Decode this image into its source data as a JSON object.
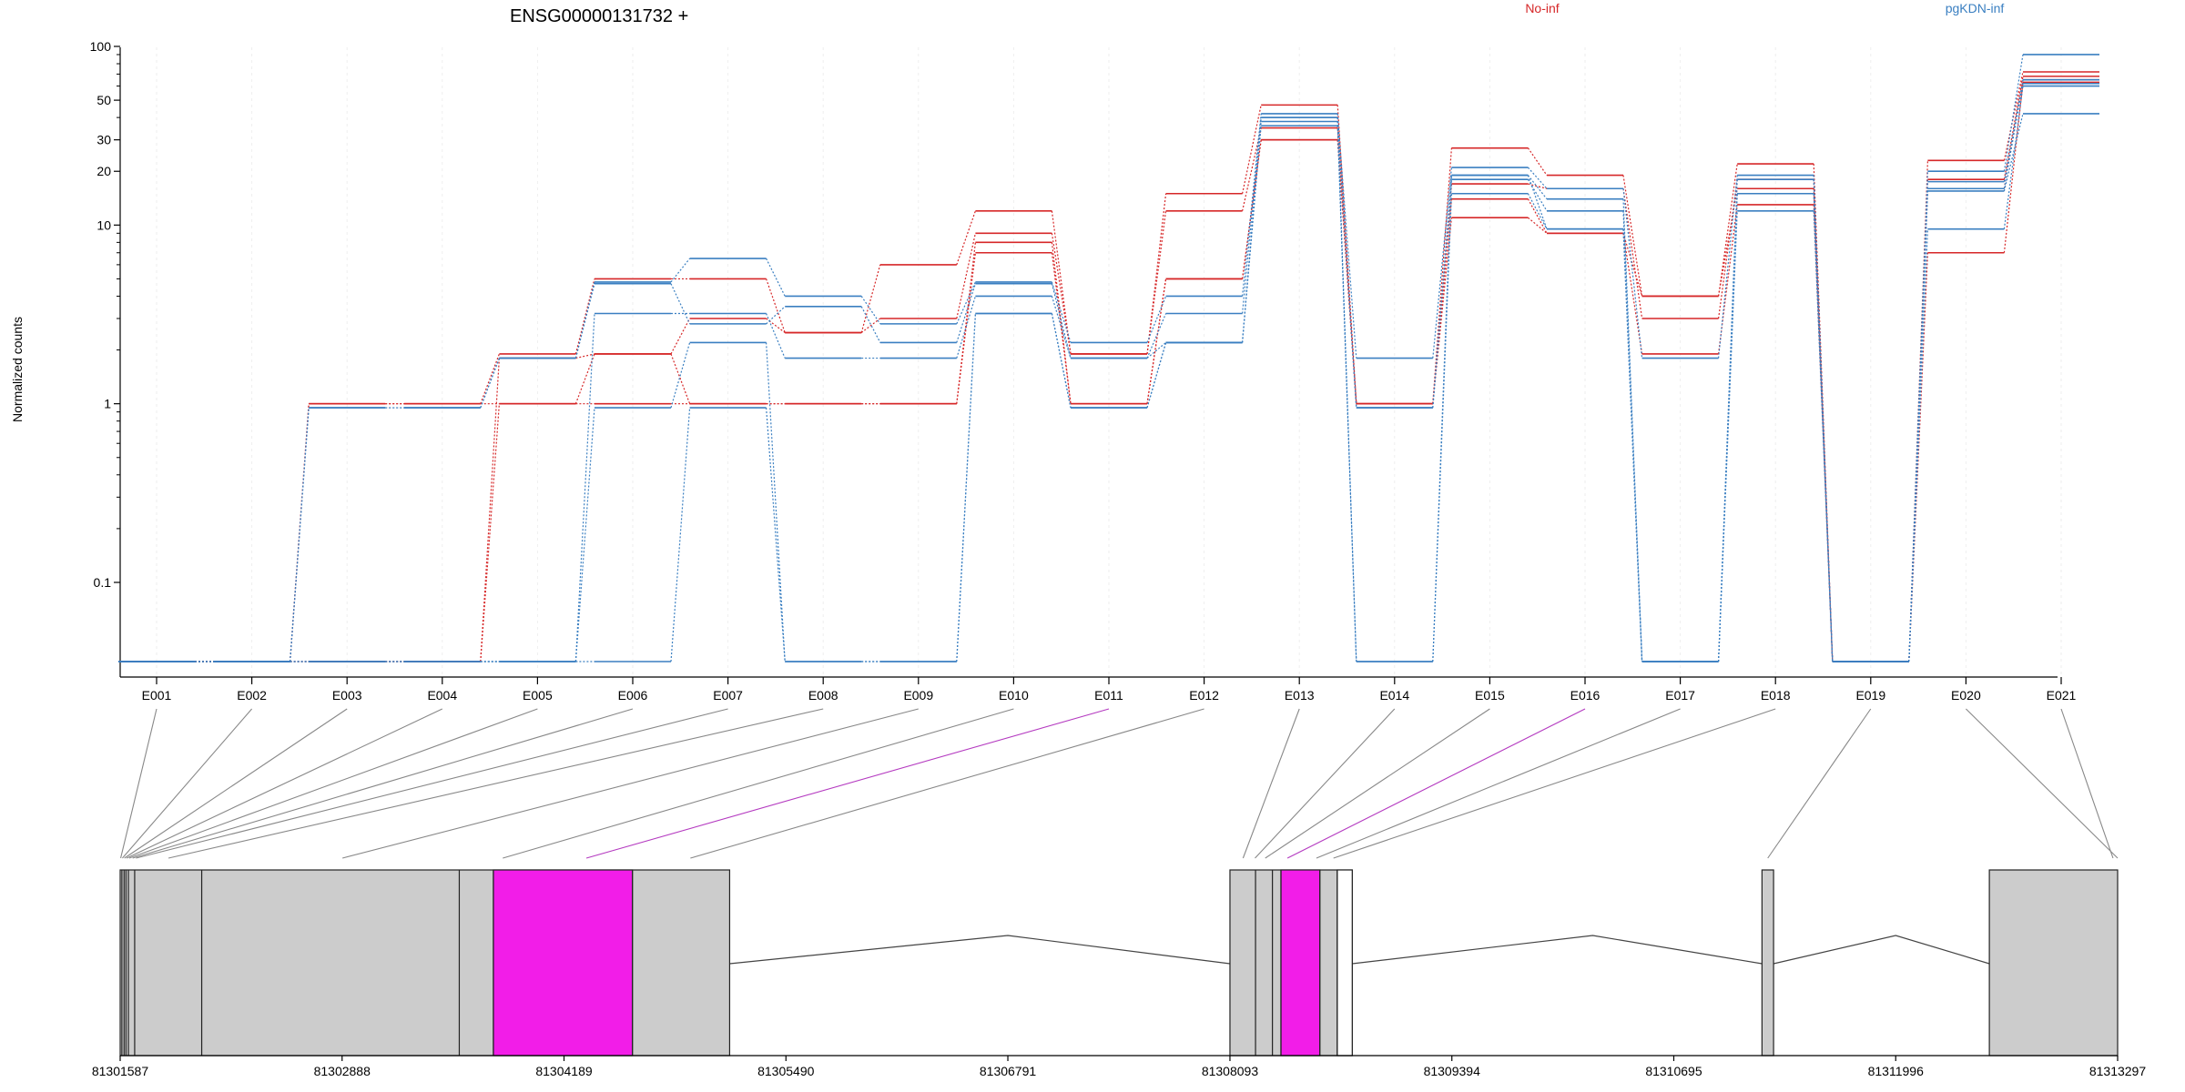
{
  "chart_data": {
    "type": "line",
    "title": "ENSG00000131732 +",
    "ylabel": "Normalized counts",
    "xlabel": "",
    "y_scale": "log",
    "ylim": [
      0.07,
      100
    ],
    "y_ticks": [
      {
        "value": 0.1,
        "label": "0.1"
      },
      {
        "value": 1,
        "label": "1"
      },
      {
        "value": 10,
        "label": "10"
      },
      {
        "value": 20,
        "label": "20"
      },
      {
        "value": 30,
        "label": "30"
      },
      {
        "value": 50,
        "label": "50"
      },
      {
        "value": 100,
        "label": "100"
      }
    ],
    "categories": [
      "E001",
      "E002",
      "E003",
      "E004",
      "E005",
      "E006",
      "E007",
      "E008",
      "E009",
      "E010",
      "E011",
      "E012",
      "E013",
      "E014",
      "E015",
      "E016",
      "E017",
      "E018",
      "E019",
      "E020",
      "E021"
    ],
    "legend": [
      {
        "label": "No-inf",
        "color": "#d62728"
      },
      {
        "label": "pgKDN-inf",
        "color": "#3a7fc1"
      }
    ],
    "grid": true,
    "series": [
      {
        "group": "No-inf",
        "color": "#d62728",
        "values": [
          0.07,
          0.07,
          1,
          1,
          1.9,
          5,
          5,
          2.5,
          6,
          12,
          1.9,
          15,
          47,
          1,
          27,
          19,
          4,
          22,
          0.07,
          23,
          72
        ]
      },
      {
        "group": "No-inf",
        "color": "#d62728",
        "values": [
          0.07,
          0.07,
          1,
          1,
          1,
          1.9,
          3,
          2.5,
          3,
          9,
          1.9,
          12,
          35,
          1,
          17,
          16,
          3,
          18,
          0.07,
          18,
          68
        ]
      },
      {
        "group": "No-inf",
        "color": "#d62728",
        "values": [
          0.07,
          0.07,
          0.07,
          0.07,
          1.8,
          1.9,
          1,
          1,
          1,
          8,
          1,
          5,
          30,
          1,
          14,
          9,
          4,
          16,
          0.07,
          16,
          65
        ]
      },
      {
        "group": "No-inf",
        "color": "#d62728",
        "values": [
          0.07,
          0.07,
          0.07,
          0.07,
          1,
          1,
          1,
          1,
          1,
          7,
          1,
          5,
          30,
          1,
          11,
          9,
          1.9,
          13,
          0.07,
          7,
          63
        ]
      },
      {
        "group": "pgKDN-inf",
        "color": "#3a7fc1",
        "values": [
          0.07,
          0.07,
          0.95,
          0.95,
          1.8,
          4.8,
          6.5,
          4,
          2.8,
          4.8,
          2.2,
          4,
          42,
          1.8,
          21,
          16,
          1.8,
          19,
          0.07,
          20,
          90
        ]
      },
      {
        "group": "pgKDN-inf",
        "color": "#3a7fc1",
        "values": [
          0.07,
          0.07,
          0.95,
          0.95,
          1.8,
          4.7,
          2.8,
          3.5,
          2.2,
          4.7,
          1.8,
          3.2,
          40,
          0.95,
          19,
          14,
          0.07,
          18,
          0.07,
          17.5,
          65
        ]
      },
      {
        "group": "pgKDN-inf",
        "color": "#3a7fc1",
        "values": [
          0.07,
          0.07,
          0.07,
          0.07,
          0.07,
          3.2,
          3.2,
          1.8,
          1.8,
          4,
          1.8,
          2.2,
          38,
          0.95,
          18,
          12,
          0.07,
          15,
          0.07,
          16,
          62
        ]
      },
      {
        "group": "pgKDN-inf",
        "color": "#3a7fc1",
        "values": [
          0.07,
          0.07,
          0.07,
          0.07,
          0.07,
          0.95,
          2.2,
          0.07,
          0.07,
          3.2,
          0.95,
          2.2,
          36,
          0.07,
          15,
          9.5,
          0.07,
          12,
          0.07,
          9.5,
          60
        ]
      },
      {
        "group": "pgKDN-inf",
        "color": "#3a7fc1",
        "values": [
          0.07,
          0.07,
          0.07,
          0.07,
          0.07,
          0.07,
          0.95,
          0.07,
          0.07,
          3.2,
          0.95,
          2.2,
          40,
          0.07,
          19,
          9.5,
          0.07,
          15,
          0.07,
          15.5,
          42
        ]
      }
    ],
    "gene_model": {
      "coordinate_min": 81301587,
      "coordinate_max": 81313297,
      "coordinate_ticks": [
        81301587,
        81302888,
        81304189,
        81305490,
        81306791,
        81308093,
        81309394,
        81310695,
        81311996,
        81313297
      ],
      "highlight_color": "#f21de8",
      "exon_color": "#cccccc",
      "exons": [
        {
          "start": 81301587,
          "end": 81305160,
          "highlight": false
        },
        {
          "start": 81303775,
          "end": 81304590,
          "highlight": true
        },
        {
          "start": 81308093,
          "end": 81308810,
          "highlight": false
        },
        {
          "start": 81308392,
          "end": 81308620,
          "highlight": true
        },
        {
          "start": 81308722,
          "end": 81308810,
          "highlight": false,
          "outline_only": true
        },
        {
          "start": 81311212,
          "end": 81311280,
          "highlight": false
        },
        {
          "start": 81312545,
          "end": 81313297,
          "highlight": false
        }
      ],
      "exon_dividers": [
        81301597,
        81301610,
        81301621,
        81301635,
        81301672,
        81302065,
        81303575,
        81303775,
        81304590,
        81308243,
        81308342,
        81308392,
        81308620,
        81308722
      ],
      "introns": [
        {
          "start": 81305160,
          "end": 81308093,
          "peak": 81306791
        },
        {
          "start": 81308810,
          "end": 81311212,
          "peak": 81310220
        },
        {
          "start": 81311280,
          "end": 81312545,
          "peak": 81311996
        }
      ],
      "feature_links": [
        {
          "exon": "E001",
          "coord": 81301590,
          "highlight": false
        },
        {
          "exon": "E002",
          "coord": 81301600,
          "highlight": false
        },
        {
          "exon": "E003",
          "coord": 81301612,
          "highlight": false
        },
        {
          "exon": "E004",
          "coord": 81301625,
          "highlight": false
        },
        {
          "exon": "E005",
          "coord": 81301640,
          "highlight": false
        },
        {
          "exon": "E006",
          "coord": 81301660,
          "highlight": false
        },
        {
          "exon": "E007",
          "coord": 81301680,
          "highlight": false
        },
        {
          "exon": "E008",
          "coord": 81301870,
          "highlight": false
        },
        {
          "exon": "E009",
          "coord": 81302890,
          "highlight": false
        },
        {
          "exon": "E010",
          "coord": 81303830,
          "highlight": false
        },
        {
          "exon": "E011",
          "coord": 81304320,
          "highlight": true
        },
        {
          "exon": "E012",
          "coord": 81304930,
          "highlight": false
        },
        {
          "exon": "E013",
          "coord": 81308170,
          "highlight": false
        },
        {
          "exon": "E014",
          "coord": 81308240,
          "highlight": false
        },
        {
          "exon": "E015",
          "coord": 81308300,
          "highlight": false
        },
        {
          "exon": "E016",
          "coord": 81308430,
          "highlight": true
        },
        {
          "exon": "E017",
          "coord": 81308600,
          "highlight": false
        },
        {
          "exon": "E018",
          "coord": 81308700,
          "highlight": false
        },
        {
          "exon": "E019",
          "coord": 81311246,
          "highlight": false
        },
        {
          "exon": "E020",
          "coord": 81313297,
          "highlight": false
        },
        {
          "exon": "E021",
          "coord": 81313270,
          "highlight": false
        }
      ]
    }
  }
}
